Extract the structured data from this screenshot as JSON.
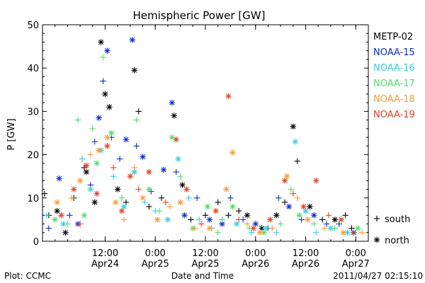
{
  "chart_data": {
    "type": "scatter",
    "title": "Hemispheric Power [GW]",
    "ylabel": "P [GW]",
    "xlabel": "Date and Time",
    "ylim": [
      0,
      50
    ],
    "yticks": [
      0,
      10,
      20,
      30,
      40,
      50
    ],
    "xlim": [
      "2011-04-23T21:00",
      "2011-04-27T03:00"
    ],
    "xticks": [
      {
        "time": "2011-04-24T12:00",
        "label": "12:00",
        "sublabel": "Apr24"
      },
      {
        "time": "2011-04-25T00:00",
        "label": "0:00",
        "sublabel": "Apr25"
      },
      {
        "time": "2011-04-25T12:00",
        "label": "12:00",
        "sublabel": "Apr25"
      },
      {
        "time": "2011-04-26T00:00",
        "label": "0:00",
        "sublabel": "Apr26"
      },
      {
        "time": "2011-04-26T12:00",
        "label": "12:00",
        "sublabel": "Apr26"
      },
      {
        "time": "2011-04-27T00:00",
        "label": "0:00",
        "sublabel": "Apr27"
      }
    ],
    "legend_position": "right",
    "marker_legend": [
      {
        "marker": "+",
        "label": "south"
      },
      {
        "marker": "*",
        "label": "north"
      }
    ],
    "series": [
      {
        "name": "METP-02",
        "color": "#000000",
        "points": [
          [
            "2011-04-23T21:30",
            11,
            "s"
          ],
          [
            "2011-04-23T22:30",
            6,
            "s"
          ],
          [
            "2011-04-24T00:30",
            7,
            "n"
          ],
          [
            "2011-04-24T02:30",
            2,
            "n"
          ],
          [
            "2011-04-24T04:30",
            10,
            "s"
          ],
          [
            "2011-04-24T07:00",
            17,
            "s"
          ],
          [
            "2011-04-24T07:30",
            16,
            "n"
          ],
          [
            "2011-04-24T09:30",
            9,
            "n"
          ],
          [
            "2011-04-24T11:00",
            46,
            "n"
          ],
          [
            "2011-04-24T12:00",
            34,
            "n"
          ],
          [
            "2011-04-24T13:00",
            31,
            "n"
          ],
          [
            "2011-04-24T15:00",
            12,
            "n"
          ],
          [
            "2011-04-24T17:00",
            9,
            "s"
          ],
          [
            "2011-04-24T19:00",
            39.5,
            "n"
          ],
          [
            "2011-04-24T20:00",
            30,
            "s"
          ],
          [
            "2011-04-24T22:30",
            8,
            "s"
          ],
          [
            "2011-04-25T01:30",
            10,
            "s"
          ],
          [
            "2011-04-25T04:30",
            29,
            "n"
          ],
          [
            "2011-04-25T06:30",
            13,
            "n"
          ],
          [
            "2011-04-25T08:30",
            5,
            "s"
          ],
          [
            "2011-04-25T12:00",
            6,
            "s"
          ],
          [
            "2011-04-25T15:00",
            9,
            "s"
          ],
          [
            "2011-04-25T17:30",
            6,
            "s"
          ],
          [
            "2011-04-25T20:00",
            7,
            "s"
          ],
          [
            "2011-04-25T22:00",
            6,
            "n"
          ],
          [
            "2011-04-26T01:30",
            3,
            "n"
          ],
          [
            "2011-04-26T05:00",
            6,
            "n"
          ],
          [
            "2011-04-26T07:00",
            9,
            "s"
          ],
          [
            "2011-04-26T09:00",
            26.5,
            "n"
          ],
          [
            "2011-04-26T10:00",
            18.5,
            "s"
          ],
          [
            "2011-04-26T13:00",
            8,
            "n"
          ],
          [
            "2011-04-26T16:00",
            5,
            "s"
          ],
          [
            "2011-04-26T19:00",
            5,
            "n"
          ],
          [
            "2011-04-26T21:30",
            6,
            "s"
          ],
          [
            "2011-04-26T23:00",
            3,
            "s"
          ]
        ]
      },
      {
        "name": "NOAA-15",
        "color": "#0a2ad4",
        "points": [
          [
            "2011-04-23T22:30",
            3,
            "s"
          ],
          [
            "2011-04-24T01:00",
            14.5,
            "n"
          ],
          [
            "2011-04-24T03:30",
            6,
            "s"
          ],
          [
            "2011-04-24T05:30",
            4,
            "n"
          ],
          [
            "2011-04-24T08:30",
            13,
            "s"
          ],
          [
            "2011-04-24T09:30",
            23,
            "s"
          ],
          [
            "2011-04-24T10:30",
            28.5,
            "n"
          ],
          [
            "2011-04-24T11:30",
            37,
            "s"
          ],
          [
            "2011-04-24T12:30",
            44,
            "n"
          ],
          [
            "2011-04-24T13:30",
            24,
            "s"
          ],
          [
            "2011-04-24T15:30",
            19,
            "s"
          ],
          [
            "2011-04-24T17:00",
            23.5,
            "n"
          ],
          [
            "2011-04-24T18:30",
            46.5,
            "n"
          ],
          [
            "2011-04-24T19:30",
            22,
            "s"
          ],
          [
            "2011-04-24T21:00",
            19.5,
            "n"
          ],
          [
            "2011-04-24T23:00",
            11.5,
            "s"
          ],
          [
            "2011-04-25T02:00",
            16.5,
            "n"
          ],
          [
            "2011-04-25T04:00",
            32,
            "n"
          ],
          [
            "2011-04-25T05:00",
            16,
            "s"
          ],
          [
            "2011-04-25T07:00",
            6,
            "n"
          ],
          [
            "2011-04-25T10:00",
            10,
            "s"
          ],
          [
            "2011-04-25T13:00",
            5,
            "n"
          ],
          [
            "2011-04-25T16:00",
            4,
            "n"
          ],
          [
            "2011-04-25T18:00",
            10,
            "s"
          ],
          [
            "2011-04-25T21:00",
            5,
            "s"
          ],
          [
            "2011-04-26T00:00",
            4,
            "n"
          ],
          [
            "2011-04-26T03:00",
            3,
            "s"
          ],
          [
            "2011-04-26T05:30",
            10,
            "s"
          ],
          [
            "2011-04-26T08:00",
            8,
            "n"
          ],
          [
            "2011-04-26T11:00",
            5,
            "s"
          ],
          [
            "2011-04-26T14:00",
            6,
            "n"
          ],
          [
            "2011-04-26T17:00",
            4,
            "s"
          ],
          [
            "2011-04-26T20:00",
            4,
            "s"
          ],
          [
            "2011-04-26T23:30",
            2,
            "n"
          ]
        ]
      },
      {
        "name": "NOAA-16",
        "color": "#2bd1e3",
        "points": [
          [
            "2011-04-23T22:00",
            6,
            "s"
          ],
          [
            "2011-04-24T02:00",
            4,
            "n"
          ],
          [
            "2011-04-24T06:30",
            19,
            "s"
          ],
          [
            "2011-04-24T08:30",
            12,
            "n"
          ],
          [
            "2011-04-24T11:00",
            21,
            "n"
          ],
          [
            "2011-04-24T14:00",
            15,
            "s"
          ],
          [
            "2011-04-24T16:30",
            8,
            "n"
          ],
          [
            "2011-04-24T19:00",
            16,
            "n"
          ],
          [
            "2011-04-24T21:30",
            9,
            "s"
          ],
          [
            "2011-04-25T00:00",
            7,
            "s"
          ],
          [
            "2011-04-25T03:00",
            5,
            "n"
          ],
          [
            "2011-04-25T05:30",
            19,
            "n"
          ],
          [
            "2011-04-25T08:00",
            10,
            "s"
          ],
          [
            "2011-04-25T10:30",
            5,
            "s"
          ],
          [
            "2011-04-25T13:30",
            3,
            "s"
          ],
          [
            "2011-04-25T16:00",
            5,
            "s"
          ],
          [
            "2011-04-25T19:30",
            4,
            "n"
          ],
          [
            "2011-04-25T23:00",
            2,
            "s"
          ],
          [
            "2011-04-26T02:30",
            3,
            "n"
          ],
          [
            "2011-04-26T05:00",
            2,
            "s"
          ],
          [
            "2011-04-26T09:30",
            23,
            "n"
          ],
          [
            "2011-04-26T12:00",
            7,
            "n"
          ],
          [
            "2011-04-26T14:30",
            2,
            "s"
          ],
          [
            "2011-04-26T18:00",
            3,
            "n"
          ],
          [
            "2011-04-26T22:00",
            2,
            "n"
          ]
        ]
      },
      {
        "name": "NOAA-17",
        "color": "#4de06a",
        "points": [
          [
            "2011-04-24T00:00",
            5,
            "n"
          ],
          [
            "2011-04-24T03:00",
            4,
            "s"
          ],
          [
            "2011-04-24T05:30",
            28,
            "s"
          ],
          [
            "2011-04-24T07:00",
            6,
            "n"
          ],
          [
            "2011-04-24T09:00",
            26,
            "s"
          ],
          [
            "2011-04-24T10:00",
            18,
            "n"
          ],
          [
            "2011-04-24T11:30",
            42.5,
            "s"
          ],
          [
            "2011-04-24T13:30",
            25,
            "n"
          ],
          [
            "2011-04-24T16:00",
            10,
            "s"
          ],
          [
            "2011-04-24T19:30",
            28,
            "s"
          ],
          [
            "2011-04-24T22:30",
            12,
            "n"
          ],
          [
            "2011-04-25T01:00",
            7,
            "s"
          ],
          [
            "2011-04-25T04:00",
            24,
            "n"
          ],
          [
            "2011-04-25T06:00",
            15,
            "s"
          ],
          [
            "2011-04-25T09:00",
            3,
            "n"
          ],
          [
            "2011-04-25T12:30",
            8,
            "n"
          ],
          [
            "2011-04-25T15:00",
            2,
            "s"
          ],
          [
            "2011-04-25T18:30",
            8,
            "n"
          ],
          [
            "2011-04-25T22:30",
            3,
            "s"
          ],
          [
            "2011-04-26T02:00",
            2,
            "n"
          ],
          [
            "2011-04-26T06:00",
            4,
            "s"
          ],
          [
            "2011-04-26T08:30",
            12,
            "s"
          ],
          [
            "2011-04-26T10:30",
            6,
            "n"
          ],
          [
            "2011-04-26T14:00",
            4,
            "s"
          ],
          [
            "2011-04-26T19:00",
            3,
            "s"
          ],
          [
            "2011-04-27T00:30",
            3,
            "n"
          ]
        ]
      },
      {
        "name": "NOAA-18",
        "color": "#ff9a2e",
        "points": [
          [
            "2011-04-24T00:30",
            9,
            "n"
          ],
          [
            "2011-04-24T04:00",
            10,
            "s"
          ],
          [
            "2011-04-24T06:00",
            14,
            "n"
          ],
          [
            "2011-04-24T08:30",
            20,
            "s"
          ],
          [
            "2011-04-24T10:30",
            21,
            "n"
          ],
          [
            "2011-04-24T12:30",
            24,
            "n"
          ],
          [
            "2011-04-24T14:30",
            9,
            "n"
          ],
          [
            "2011-04-24T16:30",
            5,
            "s"
          ],
          [
            "2011-04-24T19:00",
            17,
            "s"
          ],
          [
            "2011-04-24T21:00",
            10,
            "n"
          ],
          [
            "2011-04-25T00:30",
            5,
            "n"
          ],
          [
            "2011-04-25T03:30",
            8,
            "s"
          ],
          [
            "2011-04-25T06:00",
            9,
            "n"
          ],
          [
            "2011-04-25T09:30",
            3,
            "s"
          ],
          [
            "2011-04-25T13:00",
            3,
            "n"
          ],
          [
            "2011-04-25T17:00",
            12,
            "n"
          ],
          [
            "2011-04-25T18:30",
            20.5,
            "n"
          ],
          [
            "2011-04-25T22:00",
            4,
            "s"
          ],
          [
            "2011-04-26T01:00",
            2,
            "n"
          ],
          [
            "2011-04-26T04:00",
            3,
            "s"
          ],
          [
            "2011-04-26T07:30",
            15,
            "n"
          ],
          [
            "2011-04-26T10:00",
            10,
            "s"
          ],
          [
            "2011-04-26T12:30",
            5,
            "n"
          ],
          [
            "2011-04-26T16:30",
            3,
            "s"
          ],
          [
            "2011-04-26T21:00",
            2,
            "n"
          ],
          [
            "2011-04-27T01:30",
            2,
            "s"
          ]
        ]
      },
      {
        "name": "NOAA-19",
        "color": "#e8401c",
        "points": [
          [
            "2011-04-24T01:30",
            6,
            "n"
          ],
          [
            "2011-04-24T04:30",
            12,
            "n"
          ],
          [
            "2011-04-24T06:00",
            4,
            "s"
          ],
          [
            "2011-04-24T07:30",
            17.5,
            "n"
          ],
          [
            "2011-04-24T10:00",
            11,
            "n"
          ],
          [
            "2011-04-24T12:30",
            22,
            "n"
          ],
          [
            "2011-04-24T14:00",
            17,
            "s"
          ],
          [
            "2011-04-24T16:00",
            7,
            "n"
          ],
          [
            "2011-04-24T18:00",
            15,
            "n"
          ],
          [
            "2011-04-24T20:00",
            12,
            "s"
          ],
          [
            "2011-04-24T22:30",
            16,
            "n"
          ],
          [
            "2011-04-25T02:30",
            9,
            "s"
          ],
          [
            "2011-04-25T05:00",
            23.5,
            "n"
          ],
          [
            "2011-04-25T07:30",
            12,
            "n"
          ],
          [
            "2011-04-25T11:00",
            4,
            "s"
          ],
          [
            "2011-04-25T14:30",
            7,
            "n"
          ],
          [
            "2011-04-25T17:30",
            33.5,
            "n"
          ],
          [
            "2011-04-25T20:00",
            5,
            "s"
          ],
          [
            "2011-04-25T23:30",
            3,
            "n"
          ],
          [
            "2011-04-26T03:30",
            5,
            "n"
          ],
          [
            "2011-04-26T07:00",
            14,
            "n"
          ],
          [
            "2011-04-26T09:00",
            11,
            "s"
          ],
          [
            "2011-04-26T11:30",
            8,
            "n"
          ],
          [
            "2011-04-26T14:30",
            14,
            "n"
          ],
          [
            "2011-04-26T17:30",
            6,
            "s"
          ],
          [
            "2011-04-26T20:30",
            5,
            "n"
          ],
          [
            "2011-04-26T23:30",
            2,
            "s"
          ]
        ]
      }
    ]
  },
  "footer": {
    "plot_credit": "Plot: CCMC",
    "timestamp": "2011/04/27 02:15:10"
  }
}
